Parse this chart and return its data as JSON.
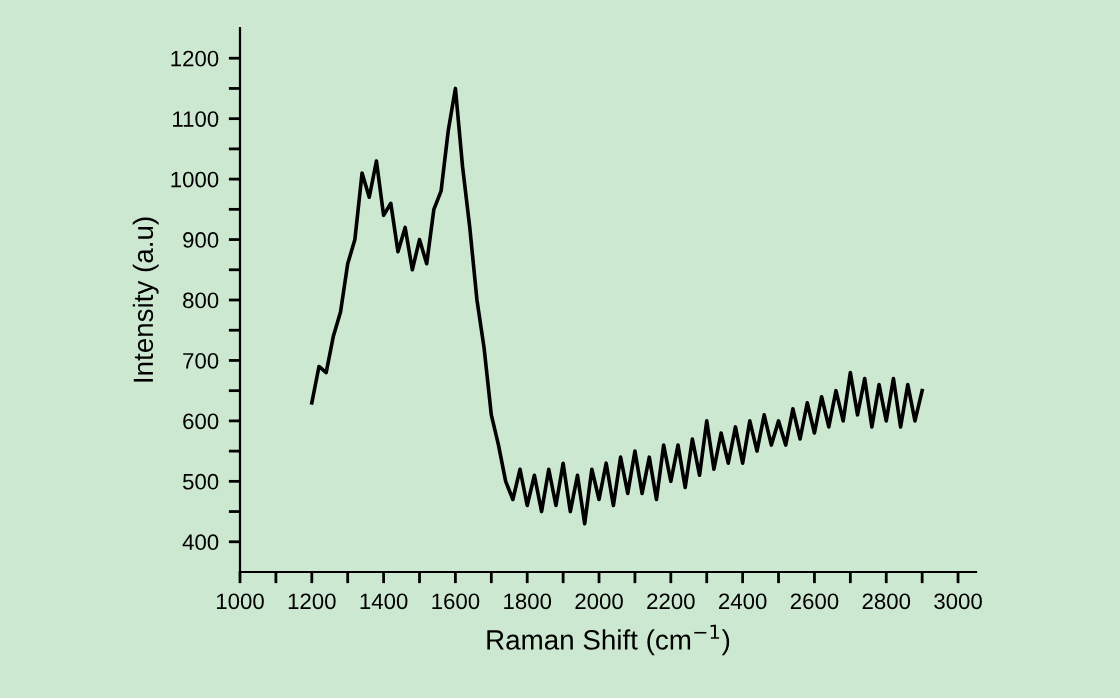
{
  "chart_data": {
    "type": "line",
    "xlabel": "Raman Shift (cm$^{−1}$)",
    "ylabel": "Intensity (a.u)",
    "x": [
      1200,
      1220,
      1240,
      1260,
      1280,
      1300,
      1320,
      1340,
      1360,
      1380,
      1400,
      1420,
      1440,
      1460,
      1480,
      1500,
      1520,
      1540,
      1560,
      1580,
      1600,
      1620,
      1640,
      1660,
      1680,
      1700,
      1720,
      1740,
      1760,
      1780,
      1800,
      1820,
      1840,
      1860,
      1880,
      1900,
      1920,
      1940,
      1960,
      1980,
      2000,
      2020,
      2040,
      2060,
      2080,
      2100,
      2120,
      2140,
      2160,
      2180,
      2200,
      2220,
      2240,
      2260,
      2280,
      2300,
      2320,
      2340,
      2360,
      2380,
      2400,
      2420,
      2440,
      2460,
      2480,
      2500,
      2520,
      2540,
      2560,
      2580,
      2600,
      2620,
      2640,
      2660,
      2680,
      2700,
      2720,
      2740,
      2760,
      2780,
      2800,
      2820,
      2840,
      2860,
      2880,
      2900
    ],
    "series": [
      {
        "color": "#000000",
        "values": [
          630,
          690,
          680,
          740,
          780,
          860,
          900,
          1010,
          970,
          1030,
          940,
          960,
          880,
          920,
          850,
          900,
          860,
          950,
          980,
          1080,
          1150,
          1020,
          920,
          800,
          720,
          610,
          560,
          500,
          470,
          520,
          460,
          510,
          450,
          520,
          460,
          530,
          450,
          510,
          430,
          520,
          470,
          530,
          460,
          540,
          480,
          550,
          480,
          540,
          470,
          560,
          500,
          560,
          490,
          570,
          510,
          600,
          520,
          580,
          530,
          590,
          530,
          600,
          550,
          610,
          560,
          600,
          560,
          620,
          570,
          630,
          580,
          640,
          590,
          650,
          600,
          680,
          610,
          670,
          590,
          660,
          600,
          670,
          590,
          660,
          600,
          650
        ]
      }
    ],
    "xlim": [
      1000,
      3050
    ],
    "ylim": [
      350,
      1250
    ],
    "xticks": [
      1000,
      {
        "value": 1100,
        "label": null
      },
      1200,
      {
        "value": 1300,
        "label": null
      },
      1400,
      {
        "value": 1500,
        "label": null
      },
      1600,
      {
        "value": 1700,
        "label": null
      },
      1800,
      {
        "value": 1900,
        "label": null
      },
      2000,
      {
        "value": 2100,
        "label": null
      },
      2200,
      {
        "value": 2300,
        "label": null
      },
      2400,
      {
        "value": 2500,
        "label": null
      },
      2600,
      {
        "value": 2700,
        "label": null
      },
      2800,
      {
        "value": 2900,
        "label": null
      },
      3000
    ],
    "yticks": [
      400,
      {
        "value": 450,
        "label": null
      },
      500,
      {
        "value": 550,
        "label": null
      },
      600,
      {
        "value": 650,
        "label": null
      },
      700,
      {
        "value": 750,
        "label": null
      },
      800,
      {
        "value": 850,
        "label": null
      },
      900,
      {
        "value": 950,
        "label": null
      },
      1000,
      {
        "value": 1050,
        "label": null
      },
      1100,
      {
        "value": 1150,
        "label": null
      },
      1200
    ],
    "grid": false,
    "legend": false,
    "marker": "none",
    "line_style": "solid"
  }
}
